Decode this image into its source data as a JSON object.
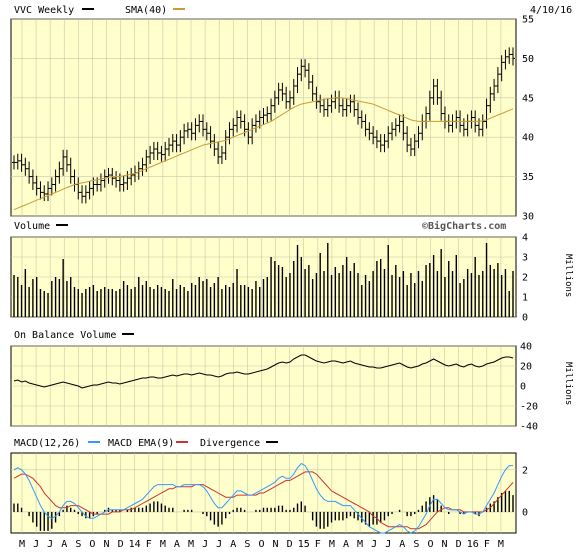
{
  "header": {
    "symbol_label": "VVC Weekly",
    "sma_label": "SMA(40)",
    "date": "4/10/16",
    "watermark": "©BigCharts.com"
  },
  "colors": {
    "panel_bg": "#ffffcc",
    "grid": "#c8c8a8",
    "price": "#000000",
    "sma": "#cc9933",
    "macd": "#3399ff",
    "macd_ema": "#cc3333",
    "divergence": "#000000",
    "axis": "#000000"
  },
  "chart_data": [
    {
      "type": "bar",
      "subtype": "ohlc",
      "title": "VVC Weekly",
      "series": [
        {
          "name": "VVC Weekly",
          "values": "ohlc"
        },
        {
          "name": "SMA(40)"
        }
      ],
      "ylim": [
        30,
        55
      ],
      "yticks": [
        30,
        35,
        40,
        45,
        50,
        55
      ],
      "x_tick_labels": [
        "M",
        "J",
        "J",
        "A",
        "S",
        "O",
        "N",
        "D",
        "14",
        "F",
        "M",
        "A",
        "M",
        "J",
        "J",
        "A",
        "S",
        "O",
        "N",
        "D",
        "15",
        "F",
        "M",
        "A",
        "M",
        "J",
        "J",
        "A",
        "S",
        "O",
        "N",
        "D",
        "16",
        "F",
        "M"
      ],
      "close": [
        36.8,
        37.0,
        36.5,
        36.0,
        35.0,
        34.2,
        33.5,
        33.0,
        32.8,
        33.5,
        34.0,
        35.0,
        36.0,
        37.5,
        36.5,
        35.0,
        34.0,
        33.0,
        32.5,
        33.0,
        33.5,
        34.0,
        34.0,
        34.5,
        35.0,
        35.2,
        34.8,
        34.5,
        34.0,
        34.2,
        34.8,
        35.2,
        35.5,
        36.0,
        36.5,
        37.5,
        38.0,
        38.5,
        38.0,
        37.8,
        38.5,
        39.0,
        39.5,
        39.0,
        40.0,
        40.8,
        41.0,
        40.5,
        41.5,
        42.0,
        41.0,
        40.5,
        39.5,
        38.5,
        37.5,
        38.0,
        40.0,
        41.0,
        41.5,
        42.5,
        42.0,
        41.0,
        40.0,
        41.5,
        42.0,
        42.5,
        42.8,
        43.0,
        44.0,
        45.0,
        46.0,
        45.5,
        44.5,
        45.0,
        46.5,
        48.0,
        49.0,
        48.5,
        47.0,
        45.5,
        44.5,
        44.0,
        43.5,
        44.0,
        44.5,
        45.0,
        44.0,
        43.5,
        44.0,
        44.5,
        43.5,
        42.5,
        42.0,
        41.0,
        40.5,
        40.0,
        39.5,
        39.0,
        39.5,
        40.5,
        41.0,
        41.5,
        42.0,
        40.5,
        39.0,
        38.5,
        39.5,
        40.5,
        42.0,
        43.0,
        45.0,
        46.5,
        45.0,
        43.0,
        42.0,
        41.5,
        42.0,
        42.5,
        41.5,
        41.0,
        42.0,
        42.5,
        41.5,
        41.0,
        42.0,
        44.0,
        45.5,
        46.5,
        48.0,
        49.5,
        50.2,
        50.5,
        50.0
      ],
      "sma": [
        30.8,
        31.0,
        31.2,
        31.4,
        31.6,
        31.8,
        32.0,
        32.2,
        32.4,
        32.6,
        32.8,
        33.0,
        33.2,
        33.4,
        33.6,
        33.8,
        34.0,
        34.1,
        34.2,
        34.3,
        34.4,
        34.5,
        34.6,
        34.7,
        34.8,
        34.9,
        35.0,
        35.0,
        35.0,
        35.1,
        35.2,
        35.3,
        35.4,
        35.6,
        35.8,
        36.0,
        36.2,
        36.4,
        36.6,
        36.8,
        37.0,
        37.2,
        37.4,
        37.6,
        37.8,
        38.0,
        38.2,
        38.4,
        38.6,
        38.8,
        39.0,
        39.1,
        39.2,
        39.3,
        39.4,
        39.5,
        39.6,
        39.8,
        40.0,
        40.2,
        40.4,
        40.6,
        40.8,
        41.0,
        41.2,
        41.4,
        41.6,
        41.8,
        42.0,
        42.3,
        42.6,
        42.9,
        43.2,
        43.5,
        43.8,
        44.0,
        44.2,
        44.3,
        44.4,
        44.5,
        44.6,
        44.7,
        44.8,
        44.9,
        44.9,
        45.0,
        45.0,
        45.0,
        44.9,
        44.8,
        44.7,
        44.6,
        44.5,
        44.4,
        44.3,
        44.2,
        44.0,
        43.8,
        43.6,
        43.4,
        43.2,
        43.0,
        42.8,
        42.6,
        42.4,
        42.2,
        42.1,
        42.0,
        42.0,
        42.0,
        42.0,
        42.0,
        42.0,
        42.0,
        42.0,
        42.0,
        42.0,
        42.0,
        42.0,
        42.0,
        42.0,
        42.0,
        42.0,
        42.0,
        42.1,
        42.2,
        42.4,
        42.6,
        42.8,
        43.0,
        43.2,
        43.4,
        43.6
      ]
    },
    {
      "type": "bar",
      "title": "Volume",
      "series": [
        {
          "name": "Volume"
        }
      ],
      "ylabel": "Millions",
      "ylim": [
        0,
        4
      ],
      "yticks": [
        0,
        1,
        2,
        3,
        4
      ],
      "values": [
        2.1,
        2.0,
        1.6,
        2.4,
        1.5,
        1.9,
        2.0,
        1.4,
        1.3,
        1.2,
        1.8,
        2.0,
        1.9,
        2.9,
        1.8,
        2.0,
        1.5,
        1.4,
        1.2,
        1.4,
        1.5,
        1.6,
        1.3,
        1.4,
        1.5,
        1.4,
        1.4,
        1.3,
        1.4,
        1.8,
        1.6,
        1.4,
        1.5,
        2.0,
        1.6,
        1.8,
        1.5,
        1.4,
        1.6,
        1.5,
        1.4,
        1.3,
        1.9,
        1.4,
        1.6,
        1.5,
        1.3,
        1.7,
        1.6,
        2.0,
        1.8,
        1.9,
        1.5,
        1.7,
        2.0,
        1.4,
        1.6,
        1.5,
        1.7,
        2.4,
        1.6,
        1.6,
        1.5,
        1.4,
        1.8,
        1.5,
        1.9,
        2.0,
        3.0,
        2.8,
        2.6,
        2.5,
        2.0,
        2.2,
        2.8,
        3.6,
        3.0,
        2.4,
        2.6,
        1.9,
        2.2,
        3.2,
        2.3,
        3.7,
        2.1,
        2.5,
        2.2,
        2.6,
        3.0,
        2.3,
        2.7,
        2.2,
        1.6,
        2.1,
        1.8,
        2.3,
        2.8,
        2.9,
        2.4,
        3.6,
        2.1,
        2.6,
        2.0,
        2.3,
        1.6,
        2.2,
        1.7,
        2.3,
        1.8,
        2.6,
        2.7,
        3.1,
        2.3,
        3.4,
        2.0,
        2.8,
        2.3,
        3.1,
        1.7,
        1.9,
        2.4,
        2.2,
        3.0,
        2.1,
        2.3,
        3.7,
        2.6,
        2.4,
        2.7,
        2.1,
        2.4,
        1.3,
        2.3
      ]
    },
    {
      "type": "line",
      "title": "On Balance Volume",
      "series": [
        {
          "name": "On Balance Volume"
        }
      ],
      "ylabel": "Millions",
      "ylim": [
        -40,
        40
      ],
      "yticks": [
        -40,
        -20,
        0,
        20,
        40
      ],
      "values": [
        5,
        6,
        4,
        5,
        3,
        2,
        1,
        0,
        -1,
        0,
        1,
        2,
        3,
        4,
        3,
        2,
        1,
        0,
        -2,
        -1,
        0,
        1,
        1,
        2,
        3,
        4,
        3,
        3,
        2,
        3,
        4,
        5,
        6,
        7,
        8,
        8,
        9,
        9,
        8,
        8,
        9,
        10,
        11,
        10,
        11,
        12,
        12,
        11,
        12,
        13,
        12,
        11,
        11,
        10,
        9,
        10,
        12,
        13,
        13,
        14,
        13,
        12,
        12,
        13,
        14,
        15,
        16,
        17,
        19,
        21,
        23,
        24,
        23,
        24,
        27,
        29,
        31,
        31,
        29,
        27,
        25,
        24,
        23,
        24,
        25,
        25,
        24,
        23,
        24,
        25,
        23,
        22,
        21,
        20,
        19,
        19,
        18,
        18,
        19,
        20,
        21,
        22,
        23,
        21,
        19,
        18,
        19,
        20,
        22,
        23,
        25,
        27,
        25,
        23,
        21,
        20,
        21,
        22,
        20,
        19,
        21,
        22,
        20,
        19,
        20,
        22,
        23,
        24,
        26,
        28,
        29,
        29,
        28
      ]
    },
    {
      "type": "line",
      "title": "MACD(12,26)",
      "series": [
        {
          "name": "MACD(12,26)"
        },
        {
          "name": "MACD EMA(9)"
        },
        {
          "name": "Divergence"
        }
      ],
      "ylim": [
        -1,
        2.8
      ],
      "yticks": [
        0,
        2
      ],
      "macd": [
        2.0,
        2.1,
        2.0,
        1.8,
        1.5,
        1.1,
        0.7,
        0.3,
        0.0,
        -0.2,
        -0.3,
        -0.2,
        0.0,
        0.3,
        0.5,
        0.5,
        0.4,
        0.2,
        0.0,
        -0.2,
        -0.3,
        -0.3,
        -0.2,
        -0.1,
        0.0,
        0.1,
        0.1,
        0.1,
        0.1,
        0.1,
        0.2,
        0.3,
        0.4,
        0.5,
        0.6,
        0.8,
        1.0,
        1.2,
        1.3,
        1.3,
        1.3,
        1.3,
        1.3,
        1.2,
        1.2,
        1.3,
        1.3,
        1.3,
        1.3,
        1.3,
        1.2,
        1.0,
        0.7,
        0.4,
        0.2,
        0.2,
        0.4,
        0.6,
        0.8,
        1.0,
        1.0,
        0.9,
        0.8,
        0.8,
        0.9,
        1.0,
        1.1,
        1.2,
        1.3,
        1.4,
        1.6,
        1.7,
        1.6,
        1.6,
        1.8,
        2.1,
        2.3,
        2.2,
        1.9,
        1.5,
        1.1,
        0.8,
        0.6,
        0.5,
        0.5,
        0.5,
        0.4,
        0.3,
        0.3,
        0.3,
        0.1,
        -0.1,
        -0.3,
        -0.5,
        -0.7,
        -0.8,
        -0.9,
        -1.0,
        -1.0,
        -0.9,
        -0.8,
        -0.7,
        -0.6,
        -0.7,
        -0.9,
        -1.0,
        -0.9,
        -0.7,
        -0.4,
        -0.1,
        0.3,
        0.6,
        0.6,
        0.4,
        0.2,
        0.1,
        0.1,
        0.1,
        0.0,
        -0.1,
        0.0,
        0.0,
        -0.1,
        -0.1,
        0.0,
        0.3,
        0.6,
        0.9,
        1.3,
        1.7,
        2.0,
        2.2,
        2.2
      ],
      "macd_ema": [
        1.6,
        1.7,
        1.8,
        1.8,
        1.7,
        1.6,
        1.4,
        1.2,
        0.9,
        0.7,
        0.5,
        0.3,
        0.2,
        0.2,
        0.2,
        0.3,
        0.3,
        0.3,
        0.2,
        0.1,
        0.0,
        -0.1,
        -0.1,
        -0.1,
        -0.1,
        -0.1,
        0.0,
        0.0,
        0.0,
        0.1,
        0.1,
        0.1,
        0.2,
        0.3,
        0.4,
        0.5,
        0.6,
        0.7,
        0.8,
        0.9,
        1.0,
        1.1,
        1.1,
        1.2,
        1.2,
        1.2,
        1.2,
        1.2,
        1.3,
        1.3,
        1.3,
        1.2,
        1.1,
        1.0,
        0.9,
        0.8,
        0.7,
        0.7,
        0.7,
        0.8,
        0.8,
        0.8,
        0.8,
        0.8,
        0.8,
        0.9,
        0.9,
        1.0,
        1.1,
        1.2,
        1.3,
        1.4,
        1.5,
        1.5,
        1.6,
        1.7,
        1.8,
        1.9,
        1.9,
        1.9,
        1.8,
        1.6,
        1.4,
        1.2,
        1.0,
        0.9,
        0.8,
        0.7,
        0.6,
        0.5,
        0.4,
        0.3,
        0.2,
        0.1,
        0.0,
        -0.2,
        -0.3,
        -0.5,
        -0.6,
        -0.7,
        -0.7,
        -0.7,
        -0.7,
        -0.7,
        -0.7,
        -0.8,
        -0.8,
        -0.8,
        -0.7,
        -0.6,
        -0.4,
        -0.2,
        0.0,
        0.1,
        0.2,
        0.2,
        0.1,
        0.1,
        0.1,
        0.0,
        0.0,
        0.0,
        0.0,
        0.0,
        0.0,
        0.1,
        0.2,
        0.4,
        0.6,
        0.8,
        1.0,
        1.2,
        1.4
      ],
      "divergence": [
        0.4,
        0.4,
        0.2,
        0.0,
        -0.2,
        -0.5,
        -0.7,
        -0.9,
        -0.9,
        -0.9,
        -0.8,
        -0.5,
        -0.2,
        0.1,
        0.3,
        0.2,
        0.1,
        -0.1,
        -0.2,
        -0.3,
        -0.3,
        -0.2,
        -0.1,
        0.0,
        0.1,
        0.2,
        0.1,
        0.1,
        0.1,
        0.0,
        0.1,
        0.2,
        0.2,
        0.2,
        0.2,
        0.3,
        0.4,
        0.5,
        0.5,
        0.4,
        0.3,
        0.2,
        0.2,
        0.0,
        0.0,
        0.1,
        0.1,
        0.1,
        0.0,
        0.0,
        -0.1,
        -0.2,
        -0.4,
        -0.6,
        -0.7,
        -0.6,
        -0.3,
        -0.1,
        0.1,
        0.2,
        0.2,
        0.1,
        0.0,
        0.0,
        0.1,
        0.1,
        0.2,
        0.2,
        0.2,
        0.2,
        0.3,
        0.3,
        0.1,
        0.1,
        0.2,
        0.4,
        0.5,
        0.3,
        0.0,
        -0.4,
        -0.7,
        -0.8,
        -0.8,
        -0.7,
        -0.5,
        -0.4,
        -0.4,
        -0.4,
        -0.3,
        -0.2,
        -0.3,
        -0.4,
        -0.5,
        -0.6,
        -0.7,
        -0.6,
        -0.6,
        -0.5,
        -0.4,
        -0.2,
        -0.1,
        0.0,
        0.1,
        0.0,
        -0.2,
        -0.2,
        -0.1,
        0.1,
        0.3,
        0.5,
        0.7,
        0.8,
        0.6,
        0.3,
        0.0,
        -0.1,
        0.0,
        0.0,
        -0.1,
        -0.1,
        0.0,
        0.0,
        -0.1,
        -0.2,
        0.0,
        0.2,
        0.4,
        0.5,
        0.7,
        0.9,
        1.0,
        1.0,
        0.8
      ]
    }
  ]
}
